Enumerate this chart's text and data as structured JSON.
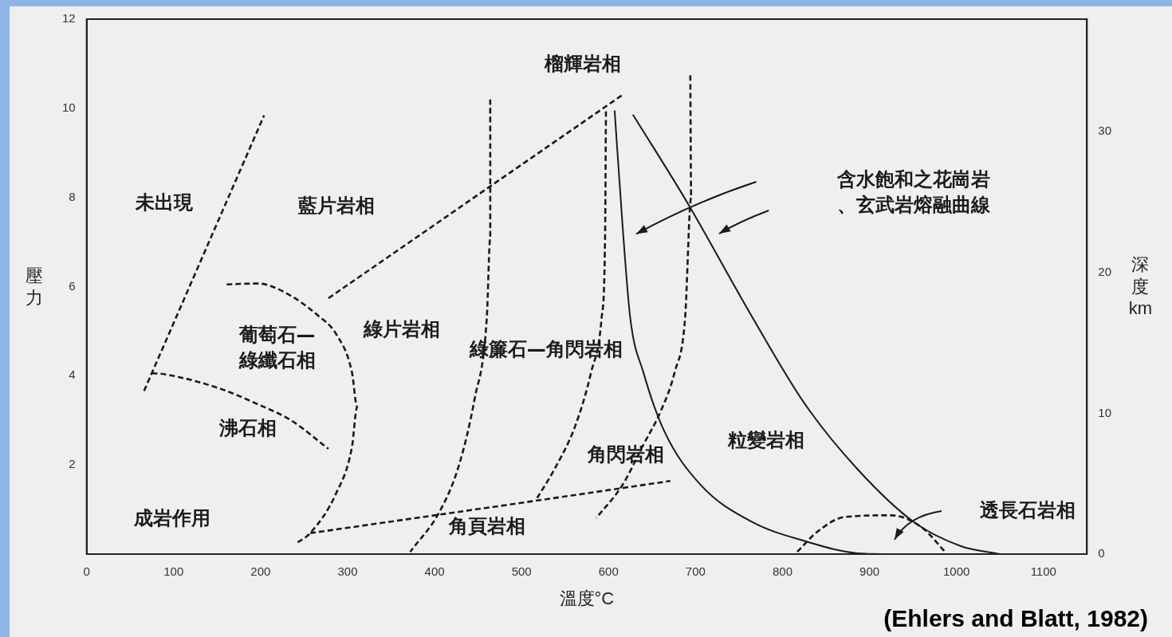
{
  "chart_data": {
    "type": "line",
    "xlabel": "溫度°C",
    "ylabel": "壓力",
    "y2label": "深度 km",
    "marker": "none",
    "xlim": [
      0,
      1150
    ],
    "xticks": [
      0,
      100,
      200,
      300,
      400,
      500,
      600,
      700,
      800,
      900,
      1000,
      1100
    ],
    "ylim": [
      0,
      12
    ],
    "yticks": [
      2,
      4,
      6,
      8,
      10,
      12
    ],
    "y2lim": [
      0,
      38
    ],
    "y2ticks": [
      0,
      10,
      20,
      30
    ],
    "series": [
      {
        "color": "#1a1a1a",
        "line_style": "dashed",
        "x": [
          66,
          204
        ],
        "values": [
          3.66,
          9.84
        ]
      },
      {
        "color": "#1a1a1a",
        "line_style": "dashed",
        "x": [
          75,
          91,
          152,
          197,
          235,
          278
        ],
        "values": [
          4.06,
          4.03,
          3.72,
          3.36,
          3.0,
          2.36
        ]
      },
      {
        "color": "#1a1a1a",
        "line_style": "dashed",
        "x": [
          161,
          197,
          226,
          266,
          287,
          305,
          311,
          305,
          287,
          257,
          240
        ],
        "values": [
          6.05,
          6.07,
          5.89,
          5.35,
          4.93,
          4.08,
          3.3,
          2.4,
          1.37,
          0.47,
          0.23
        ]
      },
      {
        "color": "#1a1a1a",
        "line_style": "dashed",
        "x": [
          278,
          616
        ],
        "values": [
          5.74,
          10.3
        ]
      },
      {
        "color": "#1a1a1a",
        "line_style": "dashed",
        "x": [
          257,
          514,
          671
        ],
        "values": [
          0.47,
          1.19,
          1.64
        ]
      },
      {
        "color": "#1a1a1a",
        "line_style": "dashed",
        "x": [
          464,
          464,
          460,
          446,
          428,
          406,
          372
        ],
        "values": [
          10.2,
          7.09,
          5.29,
          3.48,
          1.99,
          0.96,
          0.05
        ]
      },
      {
        "color": "#1a1a1a",
        "line_style": "dashed",
        "x": [
          597,
          596,
          592,
          580,
          562,
          538,
          518
        ],
        "values": [
          9.93,
          7.09,
          5.29,
          4.08,
          2.89,
          1.91,
          1.26
        ]
      },
      {
        "color": "#1a1a1a",
        "line_style": "dashed",
        "x": [
          694,
          695,
          688,
          676,
          661,
          640,
          616,
          586
        ],
        "values": [
          10.74,
          8.0,
          5.29,
          4.08,
          3.25,
          2.45,
          1.55,
          0.81
        ]
      },
      {
        "color": "#1a1a1a",
        "line_style": "solid",
        "x": [
          607,
          616,
          625,
          640,
          664,
          706,
          765,
          826,
          886,
          925
        ],
        "values": [
          9.95,
          7.4,
          5.29,
          4.08,
          2.76,
          1.55,
          0.72,
          0.29,
          0.02,
          0.0
        ]
      },
      {
        "color": "#1a1a1a",
        "line_style": "solid",
        "x": [
          628,
          691,
          766,
          826,
          886,
          951,
          1005,
          1050
        ],
        "values": [
          9.86,
          7.87,
          5.29,
          3.36,
          1.91,
          0.72,
          0.18,
          0.0
        ]
      },
      {
        "color": "#1a1a1a",
        "line_style": "dashed",
        "x": [
          817,
          840,
          871,
          925,
          960,
          987
        ],
        "values": [
          0.05,
          0.5,
          0.83,
          0.87,
          0.6,
          0.05
        ]
      }
    ],
    "annotations": [
      "未出現",
      "藍片岩相",
      "綠片岩相",
      "葡萄石—綠纖石相",
      "沸石相",
      "成岩作用",
      "角頁岩相",
      "綠簾石—角閃岩相",
      "角閃岩相",
      "粒變岩相",
      "榴輝岩相",
      "含水飽和之花崗岩、玄武岩熔融曲線",
      "透長石岩相",
      "(Ehlers and Blatt, 1982)"
    ]
  }
}
